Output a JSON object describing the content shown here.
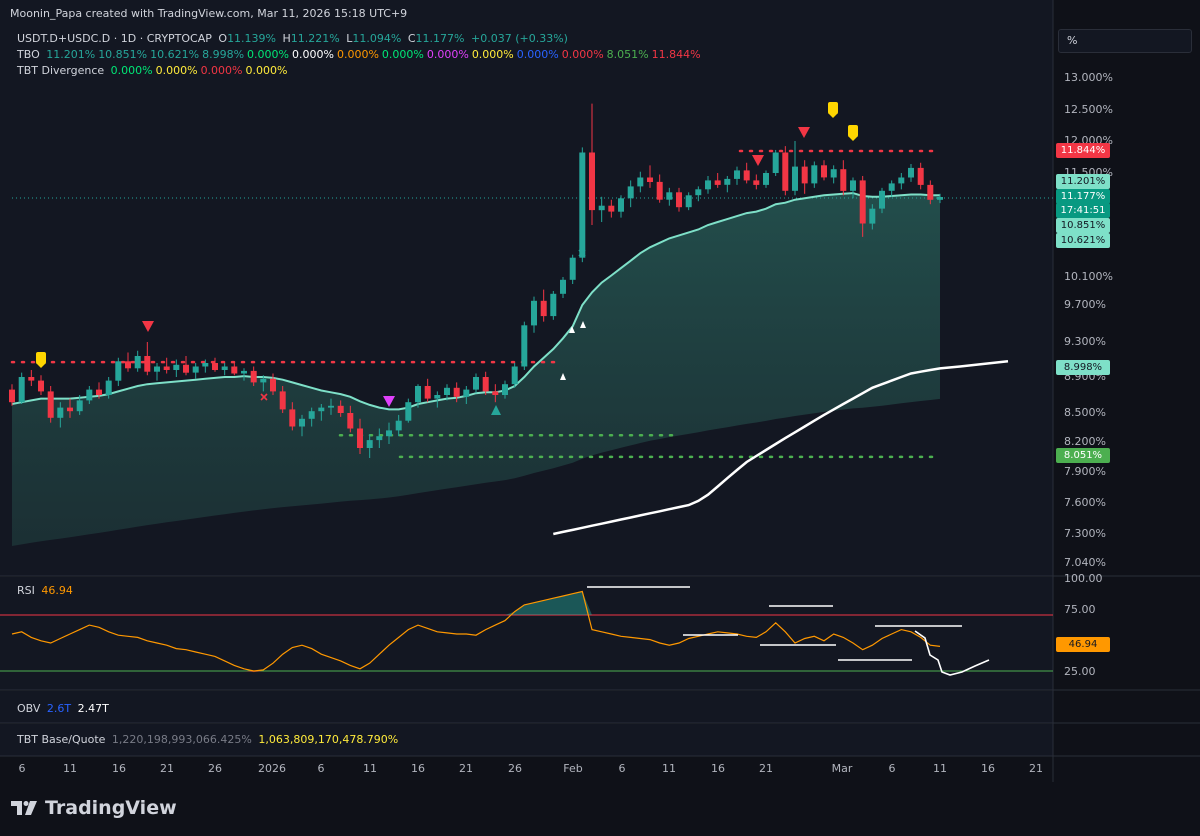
{
  "attribution": "Moonin_Papa created with TradingView.com, Mar 11, 2026 15:18 UTC+9",
  "legend": {
    "symbol": "USDT.D+USDC.D · 1D · CRYPTOCAP",
    "o_label": "O",
    "o": "11.139%",
    "h_label": "H",
    "h": "11.221%",
    "l_label": "L",
    "l": "11.094%",
    "c_label": "C",
    "c": "11.177%",
    "change": "+0.037 (+0.33%)",
    "tbo_label": "TBO",
    "tbo_values": [
      {
        "v": "11.201%",
        "color": "#26a69a"
      },
      {
        "v": "10.851%",
        "color": "#26a69a"
      },
      {
        "v": "10.621%",
        "color": "#26a69a"
      },
      {
        "v": "8.998%",
        "color": "#26a69a"
      },
      {
        "v": "0.000%",
        "color": "#00e676"
      },
      {
        "v": "0.000%",
        "color": "#ffffff"
      },
      {
        "v": "0.000%",
        "color": "#ff9800"
      },
      {
        "v": "0.000%",
        "color": "#00e676"
      },
      {
        "v": "0.000%",
        "color": "#e040fb"
      },
      {
        "v": "0.000%",
        "color": "#ffeb3b"
      },
      {
        "v": "0.000%",
        "color": "#2962ff"
      },
      {
        "v": "0.000%",
        "color": "#f23645"
      },
      {
        "v": "8.051%",
        "color": "#4caf50"
      },
      {
        "v": "11.844%",
        "color": "#f23645"
      }
    ],
    "div_label": "TBT Divergence",
    "div_values": [
      {
        "v": "0.000%",
        "color": "#00e676"
      },
      {
        "v": "0.000%",
        "color": "#ffeb3b"
      },
      {
        "v": "0.000%",
        "color": "#f23645"
      },
      {
        "v": "0.000%",
        "color": "#ffeb3b"
      }
    ]
  },
  "unit_selector": "%",
  "price_axis": {
    "ticks": [
      "13.000%",
      "12.500%",
      "12.000%",
      "11.500%",
      "10.100%",
      "9.700%",
      "9.300%",
      "8.900%",
      "8.500%",
      "8.200%",
      "7.900%",
      "7.600%",
      "7.300%",
      "7.040%"
    ],
    "badges": [
      {
        "label": "11.844%",
        "bg": "#f23645",
        "fg": "#ffffff"
      },
      {
        "label": "11.201%",
        "bg": "#7ee0c8",
        "fg": "#131722"
      },
      {
        "label": "11.177%",
        "bg": "#089981",
        "fg": "#ffffff"
      },
      {
        "label": "17:41:51",
        "bg": "#089981",
        "fg": "#ffffff"
      },
      {
        "label": "10.851%",
        "bg": "#7ee0c8",
        "fg": "#131722"
      },
      {
        "label": "10.621%",
        "bg": "#7ee0c8",
        "fg": "#131722"
      },
      {
        "label": "8.998%",
        "bg": "#7ee0c8",
        "fg": "#131722"
      },
      {
        "label": "8.051%",
        "bg": "#4caf50",
        "fg": "#ffffff"
      }
    ]
  },
  "rsi": {
    "label": "RSI",
    "value": "46.94",
    "ticks": [
      "100.00",
      "75.00",
      "25.00"
    ],
    "badge": "46.94",
    "overbought": 75,
    "oversold": 25,
    "colors": {
      "line": "#ff9800",
      "ob": "#f23645",
      "os": "#4caf50",
      "badge": "#ff9800"
    }
  },
  "obv": {
    "label": "OBV",
    "v1": "2.6T",
    "v2": "2.47T"
  },
  "tbt_bq": {
    "label": "TBT Base/Quote",
    "v1": "1,220,198,993,066.425%",
    "v2": "1,063,809,170,478.790%"
  },
  "time_axis": [
    "6",
    "11",
    "16",
    "21",
    "26",
    "2026",
    "6",
    "11",
    "16",
    "21",
    "26",
    "Feb",
    "6",
    "11",
    "16",
    "21",
    "Mar",
    "6",
    "11",
    "16",
    "21"
  ],
  "brand": "TradingView",
  "chart_data": {
    "type": "candlestick",
    "title": "USDT.D+USDC.D · 1D · CRYPTOCAP",
    "ylabel": "%",
    "ylim": [
      7.0,
      13.1
    ],
    "colors": {
      "up": "#26a69a",
      "down": "#f23645",
      "fast_ma": "#7ee0c8",
      "slow_ma": "#ffffff",
      "resistance": "#f23645",
      "support": "#4caf50"
    },
    "candles": [
      [
        8.76,
        8.82,
        8.58,
        8.62
      ],
      [
        8.62,
        8.95,
        8.6,
        8.9
      ],
      [
        8.9,
        8.98,
        8.8,
        8.86
      ],
      [
        8.86,
        8.92,
        8.7,
        8.74
      ],
      [
        8.74,
        8.8,
        8.4,
        8.45
      ],
      [
        8.45,
        8.62,
        8.35,
        8.56
      ],
      [
        8.56,
        8.66,
        8.45,
        8.52
      ],
      [
        8.52,
        8.7,
        8.48,
        8.64
      ],
      [
        8.64,
        8.8,
        8.6,
        8.76
      ],
      [
        8.76,
        8.84,
        8.66,
        8.7
      ],
      [
        8.7,
        8.9,
        8.66,
        8.86
      ],
      [
        8.86,
        9.12,
        8.8,
        9.08
      ],
      [
        9.08,
        9.18,
        8.96,
        9.0
      ],
      [
        9.0,
        9.2,
        8.96,
        9.14
      ],
      [
        9.14,
        9.3,
        8.92,
        8.96
      ],
      [
        8.96,
        9.06,
        8.86,
        9.02
      ],
      [
        9.02,
        9.12,
        8.94,
        8.98
      ],
      [
        8.98,
        9.1,
        8.9,
        9.04
      ],
      [
        9.04,
        9.14,
        8.92,
        8.95
      ],
      [
        8.95,
        9.06,
        8.88,
        9.02
      ],
      [
        9.02,
        9.1,
        8.95,
        9.06
      ],
      [
        9.06,
        9.12,
        8.96,
        8.98
      ],
      [
        8.98,
        9.06,
        8.92,
        9.02
      ],
      [
        9.02,
        9.08,
        8.92,
        8.94
      ],
      [
        8.94,
        9.0,
        8.86,
        8.97
      ],
      [
        8.97,
        9.02,
        8.8,
        8.84
      ],
      [
        8.84,
        8.92,
        8.74,
        8.88
      ],
      [
        8.88,
        8.94,
        8.7,
        8.74
      ],
      [
        8.74,
        8.8,
        8.5,
        8.54
      ],
      [
        8.54,
        8.62,
        8.32,
        8.36
      ],
      [
        8.36,
        8.48,
        8.26,
        8.44
      ],
      [
        8.44,
        8.56,
        8.36,
        8.52
      ],
      [
        8.52,
        8.6,
        8.42,
        8.56
      ],
      [
        8.56,
        8.66,
        8.48,
        8.58
      ],
      [
        8.58,
        8.64,
        8.46,
        8.5
      ],
      [
        8.5,
        8.58,
        8.3,
        8.34
      ],
      [
        8.34,
        8.44,
        8.08,
        8.14
      ],
      [
        8.14,
        8.28,
        8.04,
        8.22
      ],
      [
        8.22,
        8.34,
        8.14,
        8.26
      ],
      [
        8.26,
        8.4,
        8.18,
        8.32
      ],
      [
        8.32,
        8.48,
        8.26,
        8.42
      ],
      [
        8.42,
        8.66,
        8.4,
        8.62
      ],
      [
        8.62,
        8.82,
        8.56,
        8.8
      ],
      [
        8.8,
        8.88,
        8.62,
        8.66
      ],
      [
        8.66,
        8.74,
        8.56,
        8.7
      ],
      [
        8.7,
        8.82,
        8.64,
        8.78
      ],
      [
        8.78,
        8.84,
        8.62,
        8.68
      ],
      [
        8.68,
        8.8,
        8.6,
        8.76
      ],
      [
        8.76,
        8.94,
        8.72,
        8.9
      ],
      [
        8.9,
        8.96,
        8.7,
        8.74
      ],
      [
        8.74,
        8.82,
        8.62,
        8.7
      ],
      [
        8.7,
        8.86,
        8.66,
        8.82
      ],
      [
        8.82,
        9.06,
        8.78,
        9.02
      ],
      [
        9.02,
        9.52,
        8.98,
        9.48
      ],
      [
        9.48,
        9.82,
        9.4,
        9.76
      ],
      [
        9.76,
        9.92,
        9.52,
        9.58
      ],
      [
        9.58,
        9.9,
        9.54,
        9.86
      ],
      [
        9.86,
        10.1,
        9.8,
        10.06
      ],
      [
        10.06,
        10.4,
        10.0,
        10.36
      ],
      [
        10.36,
        11.9,
        10.3,
        11.82
      ],
      [
        11.82,
        12.6,
        10.8,
        11.0
      ],
      [
        11.0,
        11.18,
        10.84,
        11.06
      ],
      [
        11.06,
        11.14,
        10.9,
        10.98
      ],
      [
        10.98,
        11.2,
        10.9,
        11.16
      ],
      [
        11.16,
        11.4,
        11.04,
        11.32
      ],
      [
        11.32,
        11.52,
        11.24,
        11.44
      ],
      [
        11.44,
        11.62,
        11.3,
        11.38
      ],
      [
        11.38,
        11.48,
        11.1,
        11.14
      ],
      [
        11.14,
        11.3,
        11.06,
        11.24
      ],
      [
        11.24,
        11.3,
        10.98,
        11.04
      ],
      [
        11.04,
        11.24,
        11.0,
        11.2
      ],
      [
        11.2,
        11.32,
        11.12,
        11.28
      ],
      [
        11.28,
        11.46,
        11.22,
        11.4
      ],
      [
        11.4,
        11.5,
        11.3,
        11.34
      ],
      [
        11.34,
        11.46,
        11.24,
        11.42
      ],
      [
        11.42,
        11.6,
        11.34,
        11.54
      ],
      [
        11.54,
        11.66,
        11.36,
        11.4
      ],
      [
        11.4,
        11.48,
        11.28,
        11.34
      ],
      [
        11.34,
        11.54,
        11.3,
        11.5
      ],
      [
        11.5,
        11.86,
        11.46,
        11.82
      ],
      [
        11.82,
        11.92,
        11.2,
        11.26
      ],
      [
        11.26,
        12.0,
        11.2,
        11.6
      ],
      [
        11.6,
        11.7,
        11.22,
        11.36
      ],
      [
        11.36,
        11.68,
        11.3,
        11.62
      ],
      [
        11.62,
        11.7,
        11.4,
        11.44
      ],
      [
        11.44,
        11.62,
        11.36,
        11.56
      ],
      [
        11.56,
        11.7,
        11.2,
        11.26
      ],
      [
        11.26,
        11.44,
        11.16,
        11.4
      ],
      [
        11.4,
        11.46,
        10.64,
        10.82
      ],
      [
        10.82,
        11.08,
        10.74,
        11.02
      ],
      [
        11.02,
        11.3,
        10.96,
        11.26
      ],
      [
        11.26,
        11.4,
        11.18,
        11.36
      ],
      [
        11.36,
        11.5,
        11.28,
        11.44
      ],
      [
        11.44,
        11.64,
        11.38,
        11.58
      ],
      [
        11.58,
        11.66,
        11.28,
        11.34
      ],
      [
        11.34,
        11.4,
        11.08,
        11.14
      ],
      [
        11.139,
        11.221,
        11.094,
        11.177
      ]
    ],
    "ma_fast": [
      8.6,
      8.62,
      8.64,
      8.66,
      8.66,
      8.66,
      8.66,
      8.67,
      8.68,
      8.69,
      8.71,
      8.74,
      8.77,
      8.8,
      8.82,
      8.83,
      8.84,
      8.85,
      8.86,
      8.87,
      8.88,
      8.89,
      8.9,
      8.9,
      8.91,
      8.9,
      8.9,
      8.89,
      8.87,
      8.84,
      8.81,
      8.78,
      8.75,
      8.73,
      8.71,
      8.68,
      8.63,
      8.59,
      8.56,
      8.54,
      8.54,
      8.56,
      8.6,
      8.62,
      8.64,
      8.66,
      8.67,
      8.69,
      8.72,
      8.73,
      8.73,
      8.75,
      8.8,
      8.9,
      9.02,
      9.12,
      9.22,
      9.34,
      9.47,
      9.7,
      9.88,
      10.02,
      10.12,
      10.22,
      10.32,
      10.42,
      10.5,
      10.56,
      10.62,
      10.66,
      10.7,
      10.74,
      10.8,
      10.84,
      10.88,
      10.92,
      10.96,
      10.98,
      11.02,
      11.08,
      11.1,
      11.14,
      11.16,
      11.18,
      11.2,
      11.21,
      11.22,
      11.23,
      11.19,
      11.18,
      11.18,
      11.19,
      11.2,
      11.21,
      11.21,
      11.2,
      11.201
    ],
    "ma_slow": [
      null,
      null,
      null,
      null,
      null,
      null,
      null,
      null,
      null,
      null,
      null,
      null,
      null,
      null,
      null,
      null,
      null,
      null,
      null,
      null,
      null,
      null,
      null,
      null,
      null,
      null,
      null,
      null,
      null,
      null,
      null,
      null,
      null,
      null,
      null,
      null,
      null,
      null,
      null,
      null,
      null,
      null,
      null,
      null,
      null,
      null,
      null,
      null,
      null,
      null,
      null,
      null,
      null,
      null,
      null,
      null,
      7.3,
      7.32,
      7.34,
      7.36,
      7.38,
      7.4,
      7.42,
      7.44,
      7.46,
      7.48,
      7.5,
      7.52,
      7.54,
      7.56,
      7.58,
      7.62,
      7.68,
      7.76,
      7.84,
      7.92,
      8.0,
      8.06,
      8.12,
      8.18,
      8.24,
      8.3,
      8.36,
      8.42,
      8.48,
      8.54,
      8.6,
      8.66,
      8.72,
      8.78,
      8.82,
      8.86,
      8.9,
      8.94,
      8.96,
      8.98,
      8.998
    ],
    "levels": [
      {
        "name": "resistance_1",
        "value": 9.07
      },
      {
        "name": "resistance_2",
        "value": 11.844
      },
      {
        "name": "support_1",
        "value": 8.27
      },
      {
        "name": "support_2",
        "value": 8.051
      }
    ],
    "rsi_values": [
      58,
      60,
      55,
      52,
      50,
      54,
      58,
      62,
      66,
      64,
      60,
      57,
      56,
      55,
      52,
      50,
      48,
      45,
      44,
      42,
      40,
      38,
      34,
      30,
      27,
      25,
      26,
      32,
      40,
      46,
      48,
      45,
      40,
      37,
      34,
      30,
      27,
      32,
      40,
      48,
      55,
      62,
      66,
      63,
      60,
      59,
      58,
      58,
      57,
      62,
      66,
      70,
      78,
      84,
      86,
      88,
      90,
      92,
      94,
      96,
      62,
      60,
      58,
      56,
      55,
      54,
      53,
      50,
      48,
      50,
      54,
      56,
      58,
      60,
      59,
      58,
      56,
      55,
      60,
      68,
      60,
      50,
      54,
      56,
      52,
      58,
      55,
      50,
      44,
      48,
      54,
      58,
      62,
      60,
      55,
      48,
      46.94
    ]
  }
}
